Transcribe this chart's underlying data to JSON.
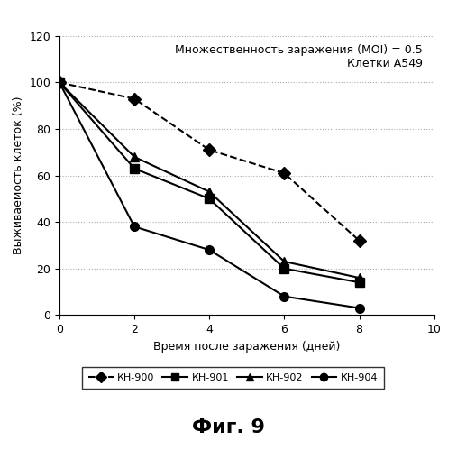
{
  "title_line1": "Множественность заражения (MOI) = 0.5",
  "title_line2": "Клетки A549",
  "xlabel": "Время после заражения (дней)",
  "ylabel": "Выживаемость клеток (%)",
  "fig_label": "Фиг. 9",
  "xlim": [
    0,
    10
  ],
  "ylim": [
    0,
    120
  ],
  "xticks": [
    0,
    2,
    4,
    6,
    8,
    10
  ],
  "yticks": [
    0,
    20,
    40,
    60,
    80,
    100,
    120
  ],
  "series": [
    {
      "name": "КН-900",
      "x": [
        0,
        2,
        4,
        6,
        8
      ],
      "y": [
        100,
        93,
        71,
        61,
        32
      ],
      "marker": "D",
      "linestyle": "--",
      "color": "#000000",
      "markersize": 7
    },
    {
      "name": "КН-901",
      "x": [
        0,
        2,
        4,
        6,
        8
      ],
      "y": [
        100,
        63,
        50,
        20,
        14
      ],
      "marker": "s",
      "linestyle": "-",
      "color": "#000000",
      "markersize": 7
    },
    {
      "name": "КН-902",
      "x": [
        0,
        2,
        4,
        6,
        8
      ],
      "y": [
        100,
        68,
        53,
        23,
        16
      ],
      "marker": "^",
      "linestyle": "-",
      "color": "#000000",
      "markersize": 7
    },
    {
      "name": "КН-904",
      "x": [
        0,
        2,
        4,
        6,
        8
      ],
      "y": [
        100,
        38,
        28,
        8,
        3
      ],
      "marker": "o",
      "linestyle": "-",
      "color": "#000000",
      "markersize": 7
    }
  ],
  "grid_color": "#aaaaaa",
  "grid_linestyle": ":",
  "background_color": "#ffffff",
  "annotation_fontsize": 9,
  "axis_fontsize": 9,
  "tick_fontsize": 9,
  "legend_fontsize": 8,
  "fig_label_fontsize": 16
}
